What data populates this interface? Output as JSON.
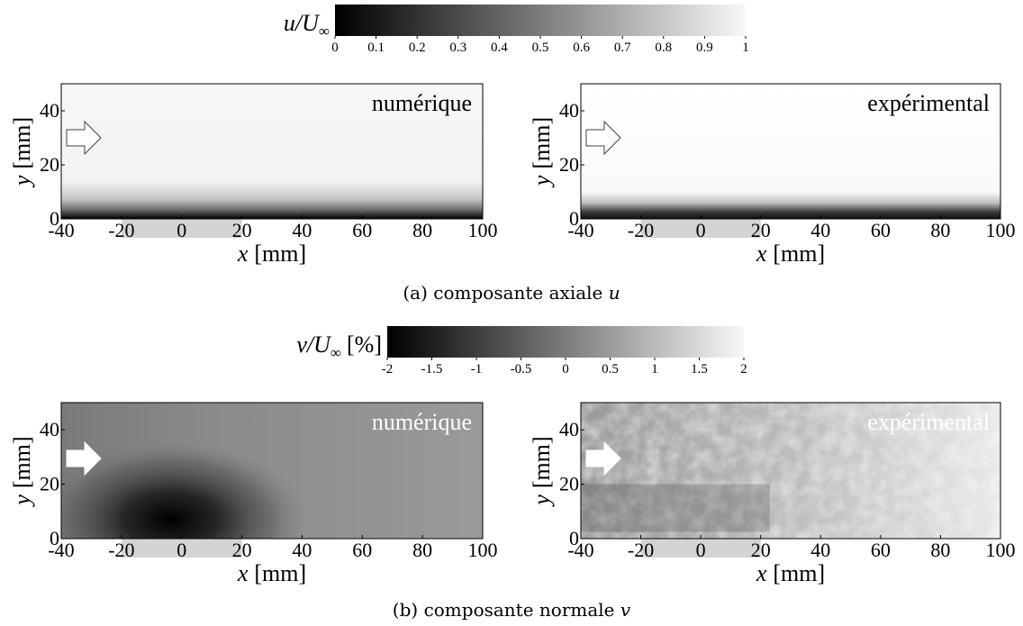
{
  "colorbars": [
    {
      "label": [
        "u/U",
        "∞"
      ],
      "lim": [
        0,
        1
      ],
      "ticks": [
        0,
        0.1,
        0.2,
        0.3,
        0.4,
        0.5,
        0.6,
        0.7,
        0.8,
        0.9,
        1
      ]
    },
    {
      "label": [
        "v/U",
        "∞",
        "[%]"
      ],
      "lim": [
        -2,
        2
      ],
      "ticks": [
        -2,
        -1.5,
        -1,
        -0.5,
        0,
        0.5,
        1,
        1.5,
        2
      ]
    }
  ],
  "panels": [
    {
      "title": "numérique",
      "xlabel": [
        "x",
        "[mm]"
      ],
      "ylabel": [
        "y",
        "[mm]"
      ],
      "xlim": [
        -40,
        100
      ],
      "ylim": [
        0,
        50
      ],
      "xticks": [
        -40,
        -20,
        0,
        20,
        40,
        60,
        80,
        100
      ],
      "yticks": [
        0,
        20,
        40
      ]
    },
    {
      "title": "expérimental",
      "xlabel": [
        "x",
        "[mm]"
      ],
      "ylabel": [
        "y",
        "[mm]"
      ],
      "xlim": [
        -40,
        100
      ],
      "ylim": [
        0,
        50
      ],
      "xticks": [
        -40,
        -20,
        0,
        20,
        40,
        60,
        80,
        100
      ],
      "yticks": [
        0,
        20,
        40
      ]
    },
    {
      "title": "numérique",
      "xlabel": [
        "x",
        "[mm]"
      ],
      "ylabel": [
        "y",
        "[mm]"
      ],
      "xlim": [
        -40,
        100
      ],
      "ylim": [
        0,
        50
      ],
      "xticks": [
        -40,
        -20,
        0,
        20,
        40,
        60,
        80,
        100
      ],
      "yticks": [
        0,
        20,
        40
      ]
    },
    {
      "title": "expérimental",
      "xlabel": [
        "x",
        "[mm]"
      ],
      "ylabel": [
        "y",
        "[mm]"
      ],
      "xlim": [
        -40,
        100
      ],
      "ylim": [
        0,
        50
      ],
      "xticks": [
        -40,
        -20,
        0,
        20,
        40,
        60,
        80,
        100
      ],
      "yticks": [
        0,
        20,
        40
      ]
    }
  ],
  "captions": [
    [
      "(a) composante axiale",
      "u"
    ],
    [
      "(b) composante normale",
      "v"
    ]
  ]
}
